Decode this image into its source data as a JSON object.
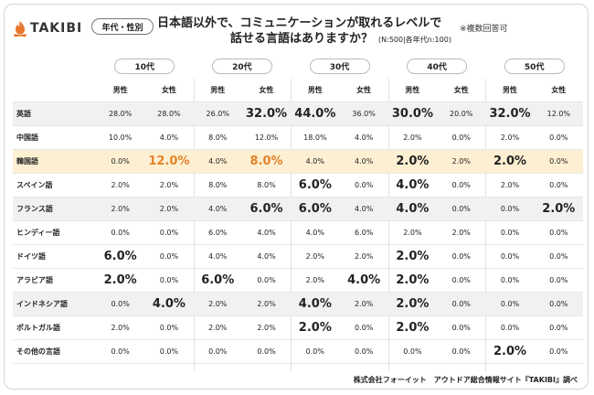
{
  "brand": {
    "name": "TAKIBI",
    "icon": "flame-icon",
    "icon_color": "#e8772e"
  },
  "badge": "年代・性別",
  "question": {
    "line1": "日本語以外で、コミュニケーションが取れるレベルで",
    "line2": "話せる言語はありますか？",
    "note": "(N:500|各年代n:100)"
  },
  "multi_answer": "※複数回答可",
  "footer": "株式会社フォーイット　アウトドア総合情報サイト『TAKIBI』調べ",
  "colors": {
    "highlight_row": "#fdf0d2",
    "alt_row": "#f1f1f1",
    "emphasis_text": "#e3832a"
  },
  "chart_data": {
    "type": "table",
    "age_groups": [
      "10代",
      "20代",
      "30代",
      "40代",
      "50代"
    ],
    "genders": [
      "男性",
      "女性"
    ],
    "columns": [
      "10代 男性",
      "10代 女性",
      "20代 男性",
      "20代 女性",
      "30代 男性",
      "30代 女性",
      "40代 男性",
      "40代 女性",
      "50代 男性",
      "50代 女性"
    ],
    "rows": [
      {
        "label": "英語",
        "values": [
          "28.0%",
          "28.0%",
          "26.0%",
          "32.0%",
          "44.0%",
          "36.0%",
          "30.0%",
          "20.0%",
          "32.0%",
          "12.0%"
        ]
      },
      {
        "label": "中国語",
        "values": [
          "10.0%",
          "4.0%",
          "8.0%",
          "12.0%",
          "18.0%",
          "4.0%",
          "2.0%",
          "0.0%",
          "2.0%",
          "0.0%"
        ]
      },
      {
        "label": "韓国語",
        "values": [
          "0.0%",
          "12.0%",
          "4.0%",
          "8.0%",
          "4.0%",
          "4.0%",
          "2.0%",
          "2.0%",
          "2.0%",
          "0.0%"
        ]
      },
      {
        "label": "スペイン語",
        "values": [
          "2.0%",
          "2.0%",
          "8.0%",
          "8.0%",
          "6.0%",
          "0.0%",
          "4.0%",
          "0.0%",
          "2.0%",
          "0.0%"
        ]
      },
      {
        "label": "フランス語",
        "values": [
          "2.0%",
          "2.0%",
          "4.0%",
          "6.0%",
          "6.0%",
          "4.0%",
          "4.0%",
          "0.0%",
          "0.0%",
          "2.0%"
        ]
      },
      {
        "label": "ヒンディー語",
        "values": [
          "0.0%",
          "0.0%",
          "6.0%",
          "4.0%",
          "4.0%",
          "6.0%",
          "2.0%",
          "2.0%",
          "0.0%",
          "0.0%"
        ]
      },
      {
        "label": "ドイツ語",
        "values": [
          "6.0%",
          "0.0%",
          "4.0%",
          "4.0%",
          "2.0%",
          "2.0%",
          "2.0%",
          "0.0%",
          "0.0%",
          "0.0%"
        ]
      },
      {
        "label": "アラビア語",
        "values": [
          "2.0%",
          "0.0%",
          "6.0%",
          "0.0%",
          "2.0%",
          "4.0%",
          "2.0%",
          "0.0%",
          "0.0%",
          "0.0%"
        ]
      },
      {
        "label": "インドネシア語",
        "values": [
          "0.0%",
          "4.0%",
          "2.0%",
          "2.0%",
          "4.0%",
          "2.0%",
          "2.0%",
          "0.0%",
          "0.0%",
          "0.0%"
        ]
      },
      {
        "label": "ポルトガル語",
        "values": [
          "2.0%",
          "0.0%",
          "2.0%",
          "2.0%",
          "2.0%",
          "0.0%",
          "2.0%",
          "0.0%",
          "0.0%",
          "0.0%"
        ]
      },
      {
        "label": "その他の言語",
        "values": [
          "0.0%",
          "0.0%",
          "0.0%",
          "0.0%",
          "0.0%",
          "0.0%",
          "0.0%",
          "0.0%",
          "2.0%",
          "0.0%"
        ]
      }
    ],
    "emphasis": [
      [
        0,
        3
      ],
      [
        0,
        4
      ],
      [
        0,
        6
      ],
      [
        0,
        8
      ],
      [
        2,
        1
      ],
      [
        2,
        3
      ],
      [
        2,
        6
      ],
      [
        2,
        8
      ],
      [
        3,
        4
      ],
      [
        3,
        6
      ],
      [
        4,
        3
      ],
      [
        4,
        4
      ],
      [
        4,
        6
      ],
      [
        4,
        9
      ],
      [
        6,
        0
      ],
      [
        6,
        6
      ],
      [
        7,
        0
      ],
      [
        7,
        2
      ],
      [
        7,
        5
      ],
      [
        7,
        6
      ],
      [
        8,
        1
      ],
      [
        8,
        4
      ],
      [
        8,
        6
      ],
      [
        9,
        4
      ],
      [
        9,
        6
      ],
      [
        10,
        8
      ]
    ],
    "orange_emphasis": [
      [
        2,
        1
      ],
      [
        2,
        3
      ]
    ],
    "highlight_row": 2,
    "alt_rows": [
      0,
      4,
      8
    ]
  }
}
